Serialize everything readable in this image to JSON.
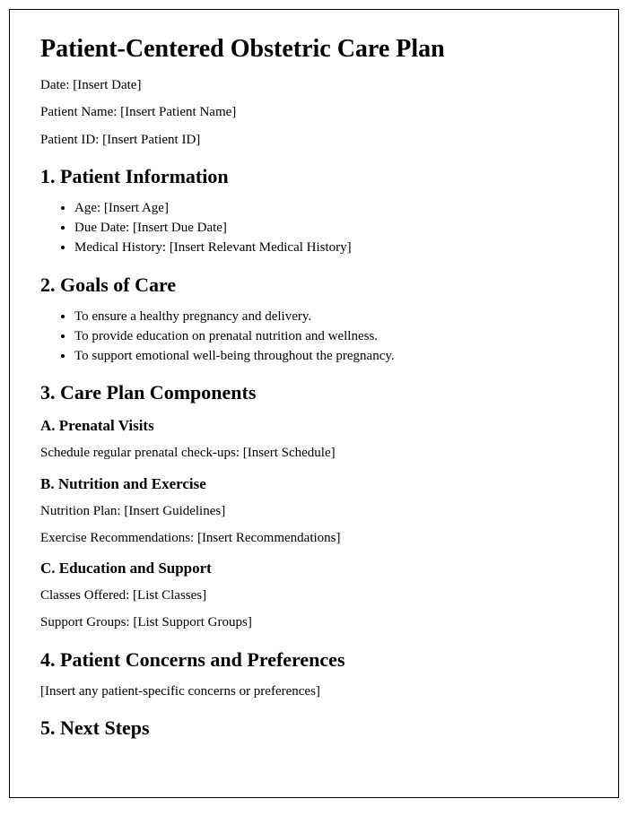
{
  "title": "Patient-Centered Obstetric Care Plan",
  "header_fields": {
    "date": "Date: [Insert Date]",
    "patient_name": "Patient Name: [Insert Patient Name]",
    "patient_id": "Patient ID: [Insert Patient ID]"
  },
  "sections": {
    "s1": {
      "heading": "1. Patient Information",
      "items": [
        "Age: [Insert Age]",
        "Due Date: [Insert Due Date]",
        "Medical History: [Insert Relevant Medical History]"
      ]
    },
    "s2": {
      "heading": "2. Goals of Care",
      "items": [
        "To ensure a healthy pregnancy and delivery.",
        "To provide education on prenatal nutrition and wellness.",
        "To support emotional well-being throughout the pregnancy."
      ]
    },
    "s3": {
      "heading": "3. Care Plan Components",
      "sub": {
        "a": {
          "heading": "A. Prenatal Visits",
          "lines": [
            "Schedule regular prenatal check-ups: [Insert Schedule]"
          ]
        },
        "b": {
          "heading": "B. Nutrition and Exercise",
          "lines": [
            "Nutrition Plan: [Insert Guidelines]",
            "Exercise Recommendations: [Insert Recommendations]"
          ]
        },
        "c": {
          "heading": "C. Education and Support",
          "lines": [
            "Classes Offered: [List Classes]",
            "Support Groups: [List Support Groups]"
          ]
        }
      }
    },
    "s4": {
      "heading": "4. Patient Concerns and Preferences",
      "body": "[Insert any patient-specific concerns or preferences]"
    },
    "s5": {
      "heading": "5. Next Steps"
    }
  },
  "style": {
    "page_border_color": "#000000",
    "text_color": "#000000",
    "background": "#ffffff",
    "h1_fontsize": 28,
    "h2_fontsize": 22,
    "h3_fontsize": 17,
    "body_fontsize": 15,
    "font_family": "Times New Roman"
  }
}
